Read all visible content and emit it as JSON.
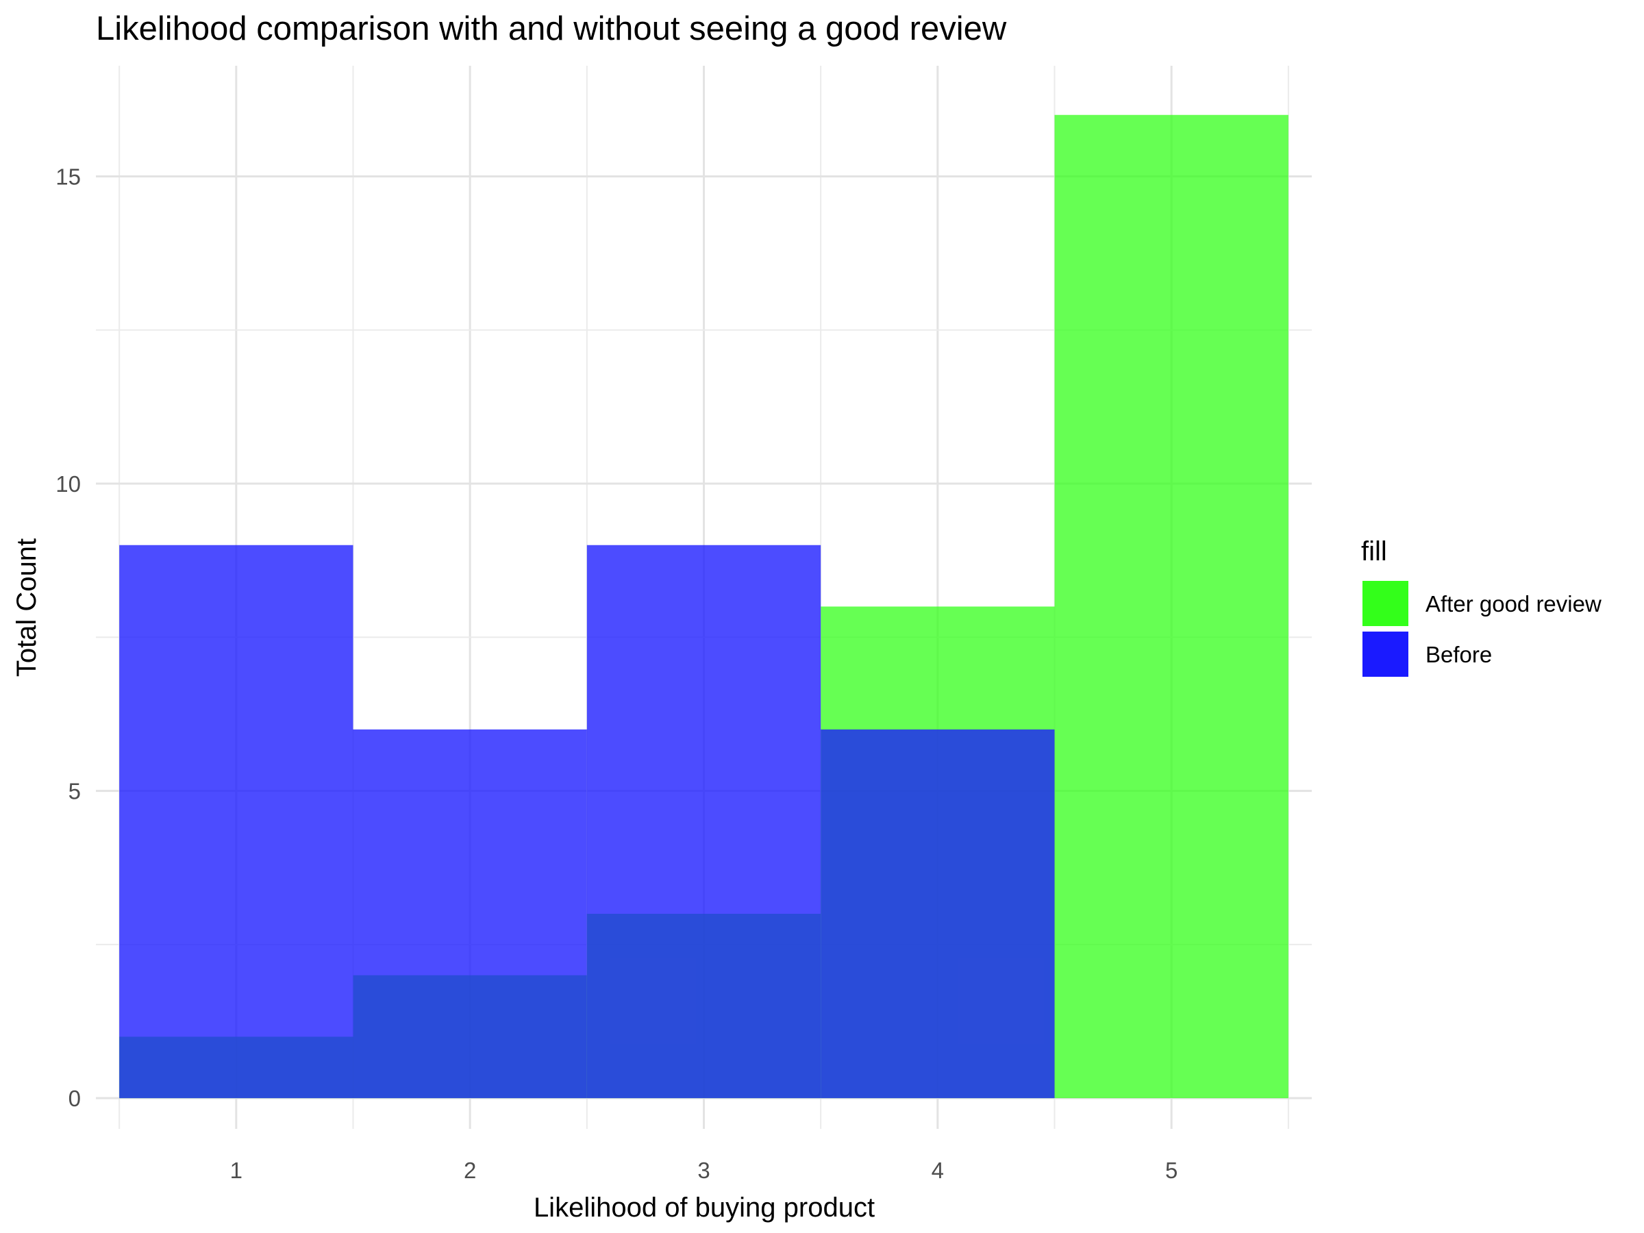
{
  "chart_data": {
    "type": "bar",
    "title": "Likelihood comparison with and without seeing a good review",
    "xlabel": "Likelihood of buying product",
    "ylabel": "Total Count",
    "categories": [
      "1",
      "2",
      "3",
      "4",
      "5"
    ],
    "x_ticks": [
      "1",
      "2",
      "3",
      "4",
      "5"
    ],
    "y_ticks": [
      "0",
      "5",
      "10",
      "15"
    ],
    "ylim": [
      -0.5,
      16.8
    ],
    "grid": true,
    "legend": {
      "title": "fill",
      "placement": "right"
    },
    "series": [
      {
        "name": "After good review",
        "values": [
          1,
          2,
          3,
          8,
          16
        ],
        "color": "#33ff1a",
        "opacity": 0.75
      },
      {
        "name": "Before",
        "values": [
          9,
          6,
          9,
          6,
          0
        ],
        "color": "#1a1aff",
        "opacity": 0.78
      }
    ]
  }
}
